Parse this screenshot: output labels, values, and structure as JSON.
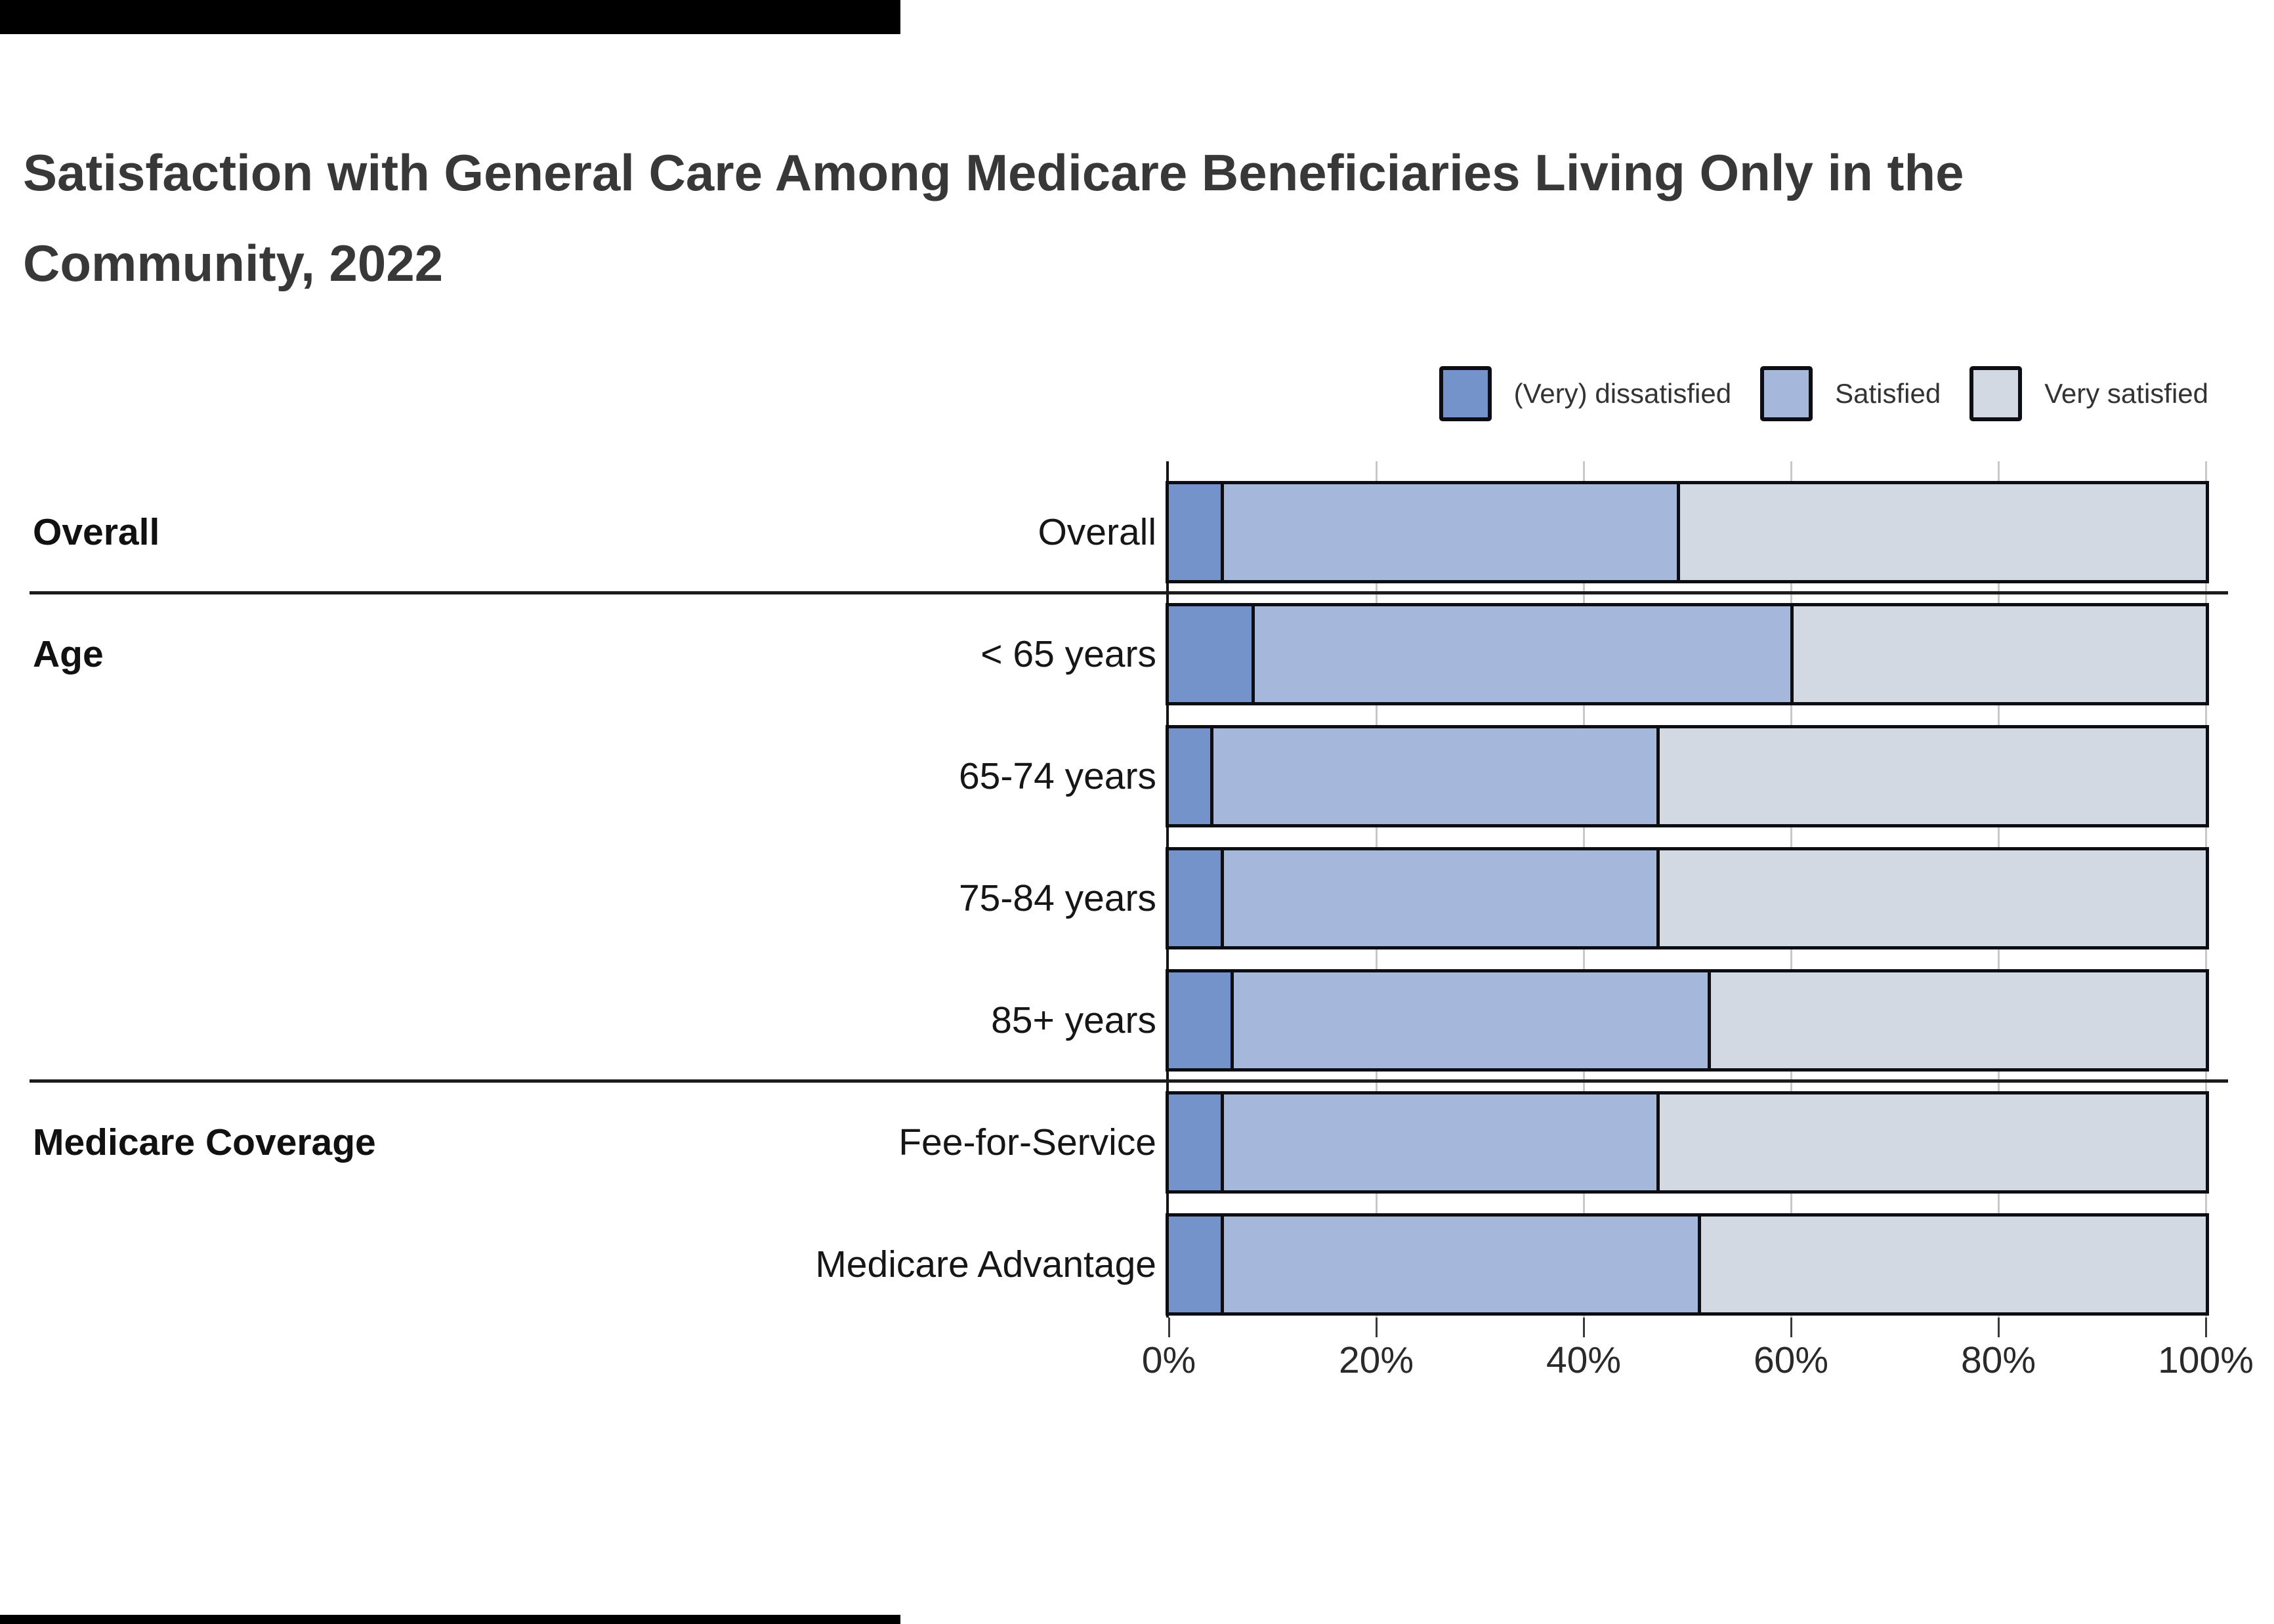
{
  "title": "Satisfaction with General Care Among Medicare Beneficiaries Living Only in the Community, 2022",
  "title_lines": [
    "Satisfaction with General Care Among Medicare Beneficiaries Living Only in the",
    "Community, 2022"
  ],
  "legend": {
    "items": [
      {
        "label": "(Very) dissatisfied",
        "color": "#7493cb"
      },
      {
        "label": "Satisfied",
        "color": "#a5b7da"
      },
      {
        "label": "Very satisfied",
        "color": "#d3d9e3"
      }
    ]
  },
  "chart_data": {
    "type": "bar",
    "orientation": "horizontal-stacked",
    "title": "Satisfaction with General Care Among Medicare Beneficiaries Living Only in the Community, 2022",
    "categories": [
      "Overall",
      "< 65 years",
      "65-74 years",
      "75-84 years",
      "85+ years",
      "Fee-for-Service",
      "Medicare Advantage"
    ],
    "groups": [
      {
        "label": "Overall",
        "first_row": 0
      },
      {
        "label": "Age",
        "first_row": 1
      },
      {
        "label": "Medicare Coverage",
        "first_row": 5
      }
    ],
    "series": [
      {
        "name": "(Very) dissatisfied",
        "values": [
          5,
          8,
          4,
          5,
          6,
          5,
          5
        ]
      },
      {
        "name": "Satisfied",
        "values": [
          44,
          52,
          43,
          42,
          46,
          42,
          46
        ]
      },
      {
        "name": "Very satisfied",
        "values": [
          51,
          40,
          53,
          53,
          48,
          53,
          49
        ]
      }
    ],
    "x_ticks": [
      "0%",
      "20%",
      "40%",
      "60%",
      "80%",
      "100%"
    ],
    "x_tick_values": [
      0,
      20,
      40,
      60,
      80,
      100
    ],
    "xlim": [
      0,
      100
    ],
    "grid": true,
    "legend_position": "top-right"
  },
  "colors": {
    "dissatisfied": "#7493cb",
    "satisfied": "#a5b7da",
    "very_satisfied": "#d3d9e3",
    "bar_border": "#0d0d14",
    "grid_line": "#c8c8c8",
    "axis_line": "#151515",
    "title_text": "#383838",
    "label_text": "#161616",
    "background": "#ffffff"
  }
}
